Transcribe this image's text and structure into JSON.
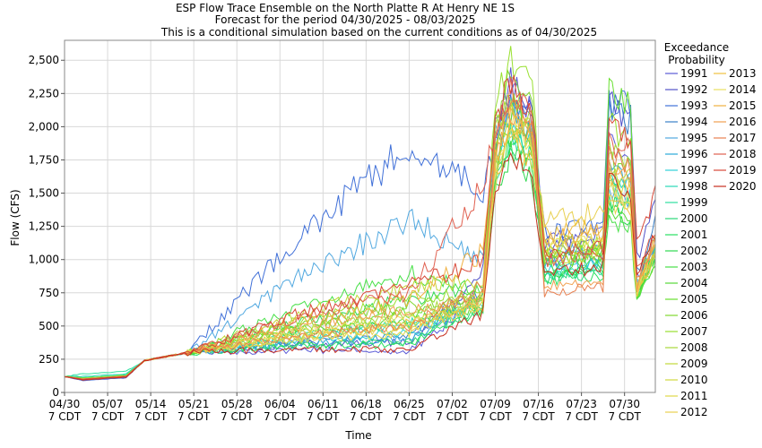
{
  "chart_data": {
    "type": "line",
    "title": [
      "ESP Flow Trace Ensemble on the North Platte R At Henry NE 1S",
      "Forecast for the period 04/30/2025 - 08/03/2025",
      "This is a conditional simulation based on the current conditions as of 04/30/2025"
    ],
    "xlabel": "Time",
    "ylabel": "Flow (CFS)",
    "ylim": [
      0,
      2650
    ],
    "x_range_days": [
      0,
      96
    ],
    "yticks": [
      "0",
      "250",
      "500",
      "750",
      "1,000",
      "1,250",
      "1,500",
      "1,750",
      "2,000",
      "2,250",
      "2,500"
    ],
    "xticks": [
      {
        "date": "04/30",
        "tz": "7 CDT"
      },
      {
        "date": "05/07",
        "tz": "7 CDT"
      },
      {
        "date": "05/14",
        "tz": "7 CDT"
      },
      {
        "date": "05/21",
        "tz": "7 CDT"
      },
      {
        "date": "05/28",
        "tz": "7 CDT"
      },
      {
        "date": "06/04",
        "tz": "7 CDT"
      },
      {
        "date": "06/11",
        "tz": "7 CDT"
      },
      {
        "date": "06/18",
        "tz": "7 CDT"
      },
      {
        "date": "06/25",
        "tz": "7 CDT"
      },
      {
        "date": "07/02",
        "tz": "7 CDT"
      },
      {
        "date": "07/09",
        "tz": "7 CDT"
      },
      {
        "date": "07/16",
        "tz": "7 CDT"
      },
      {
        "date": "07/23",
        "tz": "7 CDT"
      },
      {
        "date": "07/30",
        "tz": "7 CDT"
      }
    ],
    "grid": true,
    "legend_title": [
      "Exceedance",
      "Probability"
    ],
    "legend_placement": "right",
    "series": [
      {
        "name": "1991",
        "color": "#5a5ad6",
        "low": 90,
        "base": 310,
        "pre": 720,
        "p1": 2330,
        "mid": 1150,
        "p2": 1900,
        "end": 850
      },
      {
        "name": "1992",
        "color": "#5252c8",
        "low": 95,
        "base": 380,
        "pre": 900,
        "p1": 2300,
        "mid": 1100,
        "p2": 2180,
        "end": 1000
      },
      {
        "name": "1993",
        "color": "#4070d8",
        "low": 92,
        "base": 1850,
        "pre": 1500,
        "p1": 2200,
        "mid": 1200,
        "p2": 2220,
        "end": 800
      },
      {
        "name": "1994",
        "color": "#3a80c8",
        "low": 95,
        "base": 420,
        "pre": 760,
        "p1": 2150,
        "mid": 1000,
        "p2": 2150,
        "end": 900
      },
      {
        "name": "1995",
        "color": "#50a8e0",
        "low": 100,
        "base": 1300,
        "pre": 1000,
        "p1": 2250,
        "mid": 1050,
        "p2": 1500,
        "end": 780
      },
      {
        "name": "1996",
        "color": "#2aa8d8",
        "low": 100,
        "base": 400,
        "pre": 700,
        "p1": 2100,
        "mid": 950,
        "p2": 1700,
        "end": 820
      },
      {
        "name": "1997",
        "color": "#30d0d8",
        "low": 110,
        "base": 450,
        "pre": 680,
        "p1": 2050,
        "mid": 920,
        "p2": 1650,
        "end": 760
      },
      {
        "name": "1998",
        "color": "#28d8b8",
        "low": 120,
        "base": 500,
        "pre": 650,
        "p1": 2000,
        "mid": 900,
        "p2": 1600,
        "end": 740
      },
      {
        "name": "1999",
        "color": "#30e0a0",
        "low": 140,
        "base": 520,
        "pre": 640,
        "p1": 1950,
        "mid": 880,
        "p2": 1550,
        "end": 760
      },
      {
        "name": "2000",
        "color": "#2ad878",
        "low": 100,
        "base": 380,
        "pre": 660,
        "p1": 1900,
        "mid": 860,
        "p2": 1500,
        "end": 720
      },
      {
        "name": "2001",
        "color": "#28e060",
        "low": 100,
        "base": 360,
        "pre": 630,
        "p1": 1850,
        "mid": 850,
        "p2": 1450,
        "end": 730
      },
      {
        "name": "2002",
        "color": "#30d850",
        "low": 110,
        "base": 700,
        "pre": 800,
        "p1": 1800,
        "mid": 900,
        "p2": 1400,
        "end": 750
      },
      {
        "name": "2003",
        "color": "#48e048",
        "low": 110,
        "base": 900,
        "pre": 760,
        "p1": 1900,
        "mid": 950,
        "p2": 1300,
        "end": 700
      },
      {
        "name": "2004",
        "color": "#58d838",
        "low": 100,
        "base": 550,
        "pre": 620,
        "p1": 2000,
        "mid": 1000,
        "p2": 1350,
        "end": 710
      },
      {
        "name": "2005",
        "color": "#68e030",
        "low": 100,
        "base": 600,
        "pre": 700,
        "p1": 2150,
        "mid": 1050,
        "p2": 2300,
        "end": 720
      },
      {
        "name": "2006",
        "color": "#80d830",
        "low": 100,
        "base": 650,
        "pre": 690,
        "p1": 2400,
        "mid": 980,
        "p2": 1750,
        "end": 760
      },
      {
        "name": "2007",
        "color": "#98e030",
        "low": 100,
        "base": 700,
        "pre": 750,
        "p1": 2530,
        "mid": 1020,
        "p2": 2000,
        "end": 780
      },
      {
        "name": "2008",
        "color": "#a8d838",
        "low": 105,
        "base": 600,
        "pre": 720,
        "p1": 2250,
        "mid": 1100,
        "p2": 1850,
        "end": 800
      },
      {
        "name": "2009",
        "color": "#c0d838",
        "low": 105,
        "base": 800,
        "pre": 850,
        "p1": 2200,
        "mid": 1050,
        "p2": 1700,
        "end": 820
      },
      {
        "name": "2010",
        "color": "#d0d840",
        "low": 100,
        "base": 500,
        "pre": 700,
        "p1": 2100,
        "mid": 1000,
        "p2": 1600,
        "end": 760
      },
      {
        "name": "2011",
        "color": "#e0d848",
        "low": 100,
        "base": 450,
        "pre": 680,
        "p1": 2050,
        "mid": 1100,
        "p2": 1550,
        "end": 800
      },
      {
        "name": "2012",
        "color": "#e8d050",
        "low": 100,
        "base": 480,
        "pre": 660,
        "p1": 1900,
        "mid": 1300,
        "p2": 1450,
        "end": 750
      },
      {
        "name": "2013",
        "color": "#f0c040",
        "low": 100,
        "base": 520,
        "pre": 650,
        "p1": 1950,
        "mid": 1200,
        "p2": 1400,
        "end": 760
      },
      {
        "name": "2014",
        "color": "#e8e060",
        "low": 100,
        "base": 560,
        "pre": 700,
        "p1": 2000,
        "mid": 1100,
        "p2": 1500,
        "end": 780
      },
      {
        "name": "2015",
        "color": "#f0b040",
        "low": 100,
        "base": 700,
        "pre": 1050,
        "p1": 2100,
        "mid": 1150,
        "p2": 1650,
        "end": 820
      },
      {
        "name": "2016",
        "color": "#f0a050",
        "low": 100,
        "base": 620,
        "pre": 720,
        "p1": 2150,
        "mid": 800,
        "p2": 1700,
        "end": 800
      },
      {
        "name": "2017",
        "color": "#e88050",
        "low": 100,
        "base": 500,
        "pre": 800,
        "p1": 2200,
        "mid": 750,
        "p2": 1800,
        "end": 820
      },
      {
        "name": "2018",
        "color": "#e06050",
        "low": 100,
        "base": 750,
        "pre": 1550,
        "p1": 2300,
        "mid": 1000,
        "p2": 1900,
        "end": 900
      },
      {
        "name": "2019",
        "color": "#d84838",
        "low": 100,
        "base": 800,
        "pre": 1000,
        "p1": 2350,
        "mid": 1050,
        "p2": 2000,
        "end": 1100
      },
      {
        "name": "2020",
        "color": "#c83020",
        "low": 95,
        "base": 320,
        "pre": 600,
        "p1": 1800,
        "mid": 900,
        "p2": 1600,
        "end": 850
      }
    ]
  }
}
